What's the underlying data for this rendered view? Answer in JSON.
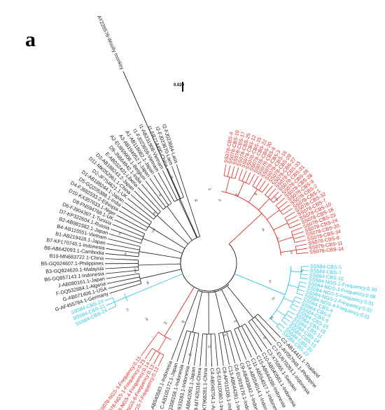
{
  "panel_label": "a",
  "scale_label": "0.020",
  "colors": {
    "black": "#1a1a1a",
    "red": "#e0231f",
    "cyan": "#27c7e0"
  },
  "outgroup": "AY226578-Woolly monkey",
  "tips_black_top": [
    "G-AF455784.1-Germany",
    "G-AB071406.1-USA",
    "F-DQ532884.1-Algeria",
    "J-AB080161.1-Japan",
    "B6-GQ857143.1-Indonesia",
    "B3-GQ924620.1-Malaysia",
    "B5-GQ924607.1-Philippines",
    "B10-MN683722.1-China",
    "B8-AB642093.1-Cambodia",
    "B7-KF170740.1-Indonesia",
    "B1-AB219428.1-Japan",
    "B4-AB115551-Vietnam",
    "B2-AB981582.1-Japan",
    "D7-KP322604.1-Russia",
    "D6-FJ904397.1-Tunisia",
    "D8-FN594768.1-UK",
    "D10-KX357633.1-Niger",
    "D4-FJ692533.2-Ethiopia",
    "D5-GQ205388.1-India",
    "D1-AB188244.1-Japan",
    "D2-JF754621.1-UK",
    "D11-MK052961.1-China",
    "D3-AB188243.2-Japan",
    "E-AB032431-Liberia",
    "D9-JN664942.1-India",
    "A2-EU859908.1-Belgium",
    "A3-AB194952.1-Japan",
    "A1-AB116082.1-Japan",
    "I1-FJ023659-Vietnam",
    "I1-AB231908-Vietnam",
    "I1-FR714490-China",
    "I2-FJ023670-Laos",
    "I2-FJ023664-Laos"
  ],
  "tips_cyan_left": [
    "SS584-CBS-24",
    "SS584-CBS-21",
    "SS584-CBS-23"
  ],
  "tips_red_left": [
    "SS078-NGS-7-Frequency:0.13",
    "SS078-NGS-6-Frequency:0.13",
    "SS078-NGS-4-Frequency:0.14",
    "SS078-NGS-1-Frequency:0.23",
    "SS078-NGS-3-Frequency:0.15"
  ],
  "tips_black_bottom": [
    "C2-AB14411.1-Thailand",
    "C1-AY057948.1-Philippine",
    "C7-EU670263.1-Indonesia",
    "C3-X75665.1-Sweden",
    "C10-AB540583.1-Indonesia",
    "C15-AB644286-Indonesia",
    "C11-AB554017.1-Indonesia",
    "C14-AB554014.1-Indonesia",
    "C9-AB493842.1-Indonesia",
    "C6-EU919176.1-Indonesia",
    "C13-AB644281.1-Indonesia",
    "C8-AP011108.1-Indonesia",
    "C5-EU410080.1-Indonesia",
    "C4-AB048704.1-Australia",
    "C16-KT968281.1-China",
    "C18-MT426116-China",
    "C-AB642091.1-Japan",
    "C-AB933283.1-Indonesia",
    "C-GQ358158.1-Indonesia",
    "C-AB105172.1-Japan",
    "C-AB540583.1-Indonesia"
  ],
  "tips_cyan_right": [
    "SS584-CBS-5",
    "SS584-CBS-7",
    "SS584-CBS-10",
    "SS584-NGS-1-Frequency:0.39",
    "SS584-NGS-3-Frequency:0.08",
    "SS584-NGS-5-Frequency:0.01",
    "SS584-NGS-2-Frequency:0.50",
    "SS584-NGS-4-Frequency:0.01",
    "SS584-CBS-4",
    "SS584-CBS-8",
    "SS584-CBS-9",
    "SS584-CBS-16",
    "SS584-CBS-18",
    "SS584-CBS-11",
    "SS584-CBS-14",
    "SS584-CBS-15",
    "SS584-CBS-20",
    "SS584-CBS-22"
  ],
  "tips_red_right": [
    "SS078-CBS-4",
    "SS078-CBS-19",
    "SS078-CBS-17",
    "SS078-CBS-25",
    "SS078-CBS-12",
    "SS078-CBS-15",
    "SS078-CBS-22",
    "SS078-CBS-30",
    "SS078-CBS-6",
    "SS078-CBS-3",
    "SS078-CBS-16",
    "SS078-CBS-29",
    "SS078-CBS-27",
    "SS078-CBS-33",
    "SS078-CBS-31",
    "SS078-CBS-26",
    "SS078-CBS-28",
    "SS078-CBS-9",
    "SS078-CBS-2",
    "SS078-CBS-1",
    "SS078-CBS-32",
    "SS078-CBS-7",
    "SS078-CBS-10",
    "SS078-CBS-18",
    "SS078-CBS-23",
    "SS078-CBS-24",
    "SS078-CBS-20",
    "SS078-CBS-34",
    "SS078-CBS-8",
    "SS078-CBS-11",
    "SS078-CBS-14"
  ],
  "bootstrap_values": [
    "41",
    "99",
    "36",
    "100",
    "45",
    "61",
    "40",
    "70",
    "97",
    "81",
    "84",
    "50",
    "43",
    "99",
    "70",
    "55",
    "82",
    "54",
    "66",
    "73",
    "90",
    "100",
    "95",
    "78",
    "100",
    "86",
    "65",
    "59",
    "92",
    "47"
  ]
}
